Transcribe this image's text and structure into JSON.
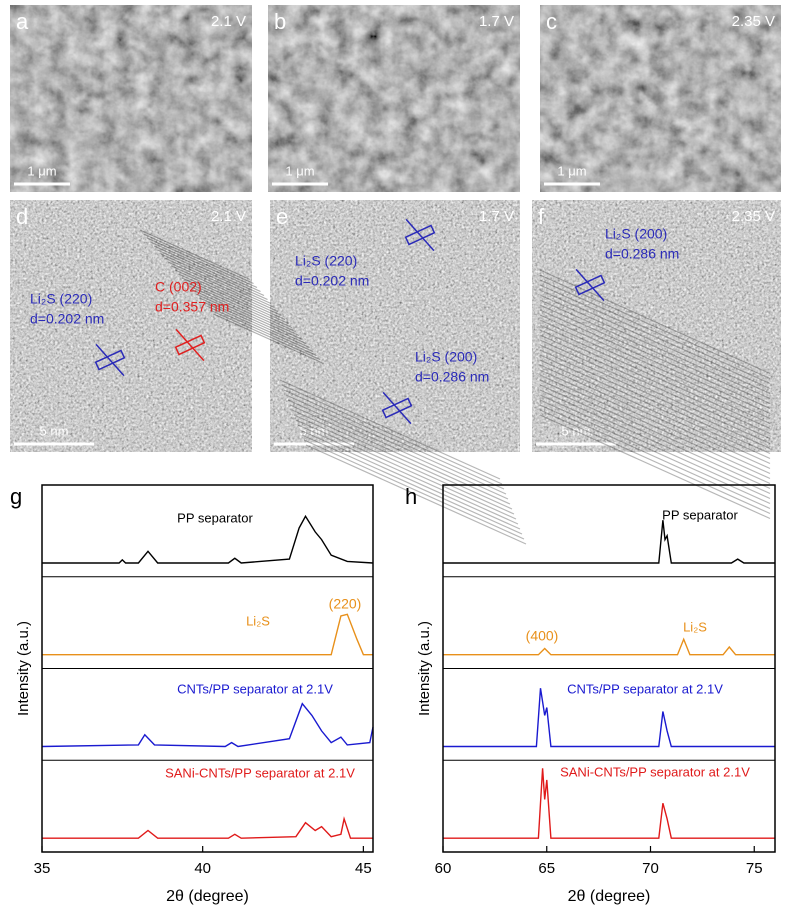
{
  "sem_panels": [
    {
      "letter": "a",
      "voltage": "2.1 V",
      "scale_bar": "1 μm"
    },
    {
      "letter": "b",
      "voltage": "1.7 V",
      "scale_bar": "1 μm"
    },
    {
      "letter": "c",
      "voltage": "2.35 V",
      "scale_bar": "1 μm"
    }
  ],
  "tem_panels": [
    {
      "letter": "d",
      "voltage": "2.1 V",
      "scale_bar": "5 nm",
      "annotations": [
        {
          "label": "Li₂S (220)",
          "spacing": "d=0.202 nm",
          "color": "#2b2bb8"
        },
        {
          "label": "C (002)",
          "spacing": "d=0.357 nm",
          "color": "#e02020"
        }
      ]
    },
    {
      "letter": "e",
      "voltage": "1.7 V",
      "scale_bar": "5 nm",
      "annotations": [
        {
          "label": "Li₂S (220)",
          "spacing": "d=0.202 nm",
          "color": "#2b2bb8"
        },
        {
          "label": "Li₂S (200)",
          "spacing": "d=0.286 nm",
          "color": "#2b2bb8"
        }
      ]
    },
    {
      "letter": "f",
      "voltage": "2.35 V",
      "scale_bar": "5 nm",
      "annotations": [
        {
          "label": "Li₂S (200)",
          "spacing": "d=0.286 nm",
          "color": "#2b2bb8"
        }
      ]
    }
  ],
  "chart_data": [
    {
      "type": "line",
      "panel": "g",
      "xlabel": "2θ (degree)",
      "ylabel": "Intensity (a.u.)",
      "xlim": [
        35,
        45.3
      ],
      "xticks": [
        35,
        40,
        45
      ],
      "ylim": [
        0,
        1
      ],
      "annotations": [
        {
          "text": "(220)",
          "color": "#e8901a"
        }
      ],
      "series": [
        {
          "name": "PP separator",
          "color": "#000000",
          "x": [
            35,
            37.4,
            37.5,
            37.6,
            38.0,
            38.3,
            38.6,
            40.8,
            41.0,
            41.2,
            42.7,
            43.0,
            43.2,
            43.5,
            43.7,
            44.0,
            44.5,
            45.3
          ],
          "values": [
            0.1,
            0.1,
            0.14,
            0.1,
            0.1,
            0.25,
            0.1,
            0.1,
            0.16,
            0.1,
            0.15,
            0.55,
            0.7,
            0.5,
            0.4,
            0.2,
            0.12,
            0.1
          ]
        },
        {
          "name": "Li₂S",
          "color": "#e8901a",
          "x": [
            35,
            44.0,
            44.3,
            44.5,
            44.8,
            45.0,
            45.3
          ],
          "values": [
            0.1,
            0.1,
            0.6,
            0.62,
            0.3,
            0.1,
            0.1
          ]
        },
        {
          "name": "CNTs/PP separator at 2.1V",
          "color": "#1a1ad0",
          "x": [
            35,
            38.0,
            38.2,
            38.5,
            40.7,
            40.9,
            41.1,
            42.7,
            43.1,
            43.4,
            43.7,
            44.0,
            44.3,
            44.5,
            45.2,
            45.3
          ],
          "values": [
            0.1,
            0.12,
            0.25,
            0.12,
            0.1,
            0.15,
            0.1,
            0.2,
            0.65,
            0.5,
            0.3,
            0.15,
            0.22,
            0.12,
            0.15,
            0.35
          ]
        },
        {
          "name": "SANi-CNTs/PP separator at 2.1V",
          "color": "#e01a1a",
          "x": [
            35,
            38.0,
            38.3,
            38.6,
            40.8,
            41.0,
            41.2,
            42.9,
            43.2,
            43.5,
            43.7,
            44.0,
            44.3,
            44.4,
            44.6,
            45.3
          ],
          "values": [
            0.1,
            0.1,
            0.2,
            0.1,
            0.1,
            0.15,
            0.1,
            0.12,
            0.3,
            0.2,
            0.25,
            0.12,
            0.15,
            0.35,
            0.1,
            0.1
          ]
        }
      ]
    },
    {
      "type": "line",
      "panel": "h",
      "xlabel": "2θ (degree)",
      "ylabel": "Intensity (a.u.)",
      "xlim": [
        60,
        76
      ],
      "xticks": [
        60,
        65,
        70,
        75
      ],
      "ylim": [
        0,
        1
      ],
      "annotations": [
        {
          "text": "(400)",
          "color": "#e8901a"
        }
      ],
      "series": [
        {
          "name": "PP separator",
          "color": "#000000",
          "x": [
            60,
            70.4,
            70.6,
            70.7,
            70.8,
            71.0,
            73.9,
            74.2,
            74.5,
            76
          ],
          "values": [
            0.1,
            0.1,
            0.65,
            0.4,
            0.45,
            0.1,
            0.1,
            0.15,
            0.1,
            0.1
          ]
        },
        {
          "name": "Li₂S",
          "color": "#e8901a",
          "x": [
            60,
            64.6,
            64.9,
            65.2,
            71.3,
            71.6,
            71.9,
            73.5,
            73.8,
            74.1,
            76
          ],
          "values": [
            0.1,
            0.1,
            0.18,
            0.1,
            0.1,
            0.3,
            0.1,
            0.1,
            0.2,
            0.1,
            0.1
          ]
        },
        {
          "name": "CNTs/PP separator at 2.1V",
          "color": "#1a1ad0",
          "x": [
            60,
            64.5,
            64.7,
            64.9,
            65.0,
            65.2,
            70.4,
            70.6,
            70.8,
            71.0,
            76
          ],
          "values": [
            0.1,
            0.1,
            0.85,
            0.5,
            0.6,
            0.1,
            0.1,
            0.55,
            0.3,
            0.1,
            0.1
          ]
        },
        {
          "name": "SANi-CNTs/PP separator at 2.1V",
          "color": "#e01a1a",
          "x": [
            60,
            64.6,
            64.8,
            64.9,
            65.0,
            65.2,
            70.4,
            70.6,
            70.8,
            71.0,
            76
          ],
          "values": [
            0.1,
            0.1,
            1.0,
            0.6,
            0.85,
            0.1,
            0.1,
            0.55,
            0.35,
            0.1,
            0.1
          ]
        }
      ]
    }
  ]
}
